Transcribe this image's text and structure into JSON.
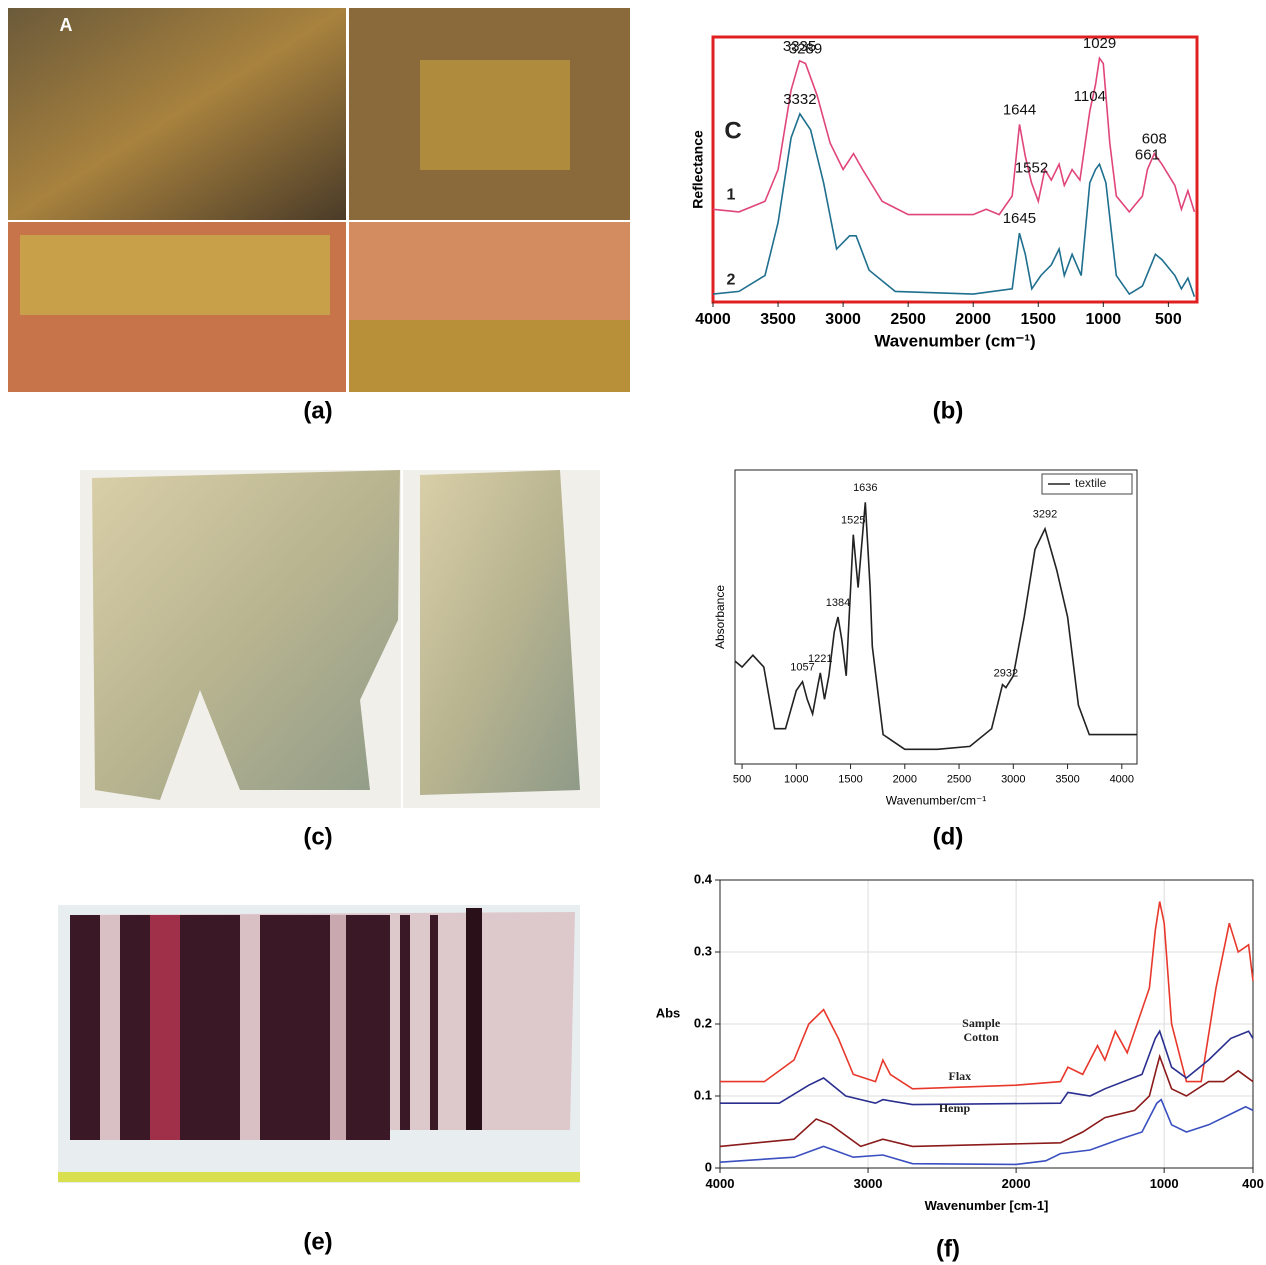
{
  "figure": {
    "panel_labels": [
      "(a)",
      "(b)",
      "(c)",
      "(d)",
      "(e)",
      "(f)"
    ],
    "inset_label": "A"
  },
  "chart_data": [
    {
      "type": "line",
      "y_label": "Reflectance",
      "x_label": "Wavenumber (cm⁻¹)",
      "inset_label": "C",
      "xlim": [
        4000,
        280
      ],
      "ylim": [
        0,
        1
      ],
      "xticks": [
        4000,
        3500,
        3000,
        2500,
        2000,
        1500,
        1000,
        500
      ],
      "frame_color": "#e02020",
      "series": [
        {
          "name": "1",
          "color": "#e0457b",
          "x": [
            4000,
            3800,
            3600,
            3500,
            3400,
            3335,
            3289,
            3200,
            3100,
            3000,
            2920,
            2850,
            2700,
            2500,
            2000,
            1900,
            1800,
            1700,
            1644,
            1600,
            1552,
            1500,
            1450,
            1400,
            1340,
            1300,
            1240,
            1180,
            1104,
            1060,
            1029,
            1000,
            950,
            900,
            800,
            700,
            661,
            608,
            550,
            450,
            400,
            350,
            300
          ],
          "values": [
            0.35,
            0.34,
            0.38,
            0.5,
            0.8,
            0.91,
            0.9,
            0.78,
            0.6,
            0.5,
            0.56,
            0.5,
            0.38,
            0.33,
            0.33,
            0.35,
            0.33,
            0.4,
            0.67,
            0.55,
            0.45,
            0.38,
            0.5,
            0.46,
            0.52,
            0.44,
            0.5,
            0.46,
            0.72,
            0.82,
            0.92,
            0.9,
            0.6,
            0.4,
            0.34,
            0.4,
            0.5,
            0.56,
            0.52,
            0.44,
            0.35,
            0.42,
            0.34
          ]
        },
        {
          "name": "2",
          "color": "#1f6f8f",
          "x": [
            4000,
            3800,
            3600,
            3500,
            3400,
            3332,
            3250,
            3150,
            3050,
            2950,
            2900,
            2800,
            2600,
            2000,
            1700,
            1645,
            1600,
            1550,
            1480,
            1400,
            1340,
            1300,
            1240,
            1170,
            1104,
            1060,
            1029,
            980,
            900,
            800,
            700,
            600,
            550,
            450,
            400,
            350,
            300
          ],
          "values": [
            0.03,
            0.04,
            0.1,
            0.3,
            0.62,
            0.71,
            0.65,
            0.45,
            0.2,
            0.25,
            0.25,
            0.12,
            0.04,
            0.03,
            0.05,
            0.26,
            0.18,
            0.05,
            0.1,
            0.14,
            0.2,
            0.1,
            0.18,
            0.1,
            0.45,
            0.5,
            0.52,
            0.45,
            0.1,
            0.03,
            0.06,
            0.18,
            0.16,
            0.1,
            0.05,
            0.09,
            0.02
          ]
        }
      ],
      "annotations": [
        {
          "label": "3335",
          "x": 3335,
          "y": 0.91
        },
        {
          "label": "3289",
          "x": 3289,
          "y": 0.9
        },
        {
          "label": "3332",
          "x": 3332,
          "y": 0.71
        },
        {
          "label": "1644",
          "x": 1644,
          "y": 0.67
        },
        {
          "label": "1552",
          "x": 1552,
          "y": 0.45
        },
        {
          "label": "1104",
          "x": 1104,
          "y": 0.72
        },
        {
          "label": "1029",
          "x": 1029,
          "y": 0.92
        },
        {
          "label": "608",
          "x": 608,
          "y": 0.56
        },
        {
          "label": "661",
          "x": 661,
          "y": 0.5
        },
        {
          "label": "1645",
          "x": 1645,
          "y": 0.26
        }
      ]
    },
    {
      "type": "line",
      "y_label": "Absorbance",
      "x_label": "Wavenumber/cm⁻¹",
      "xlim": [
        435,
        4140
      ],
      "ylim": [
        0,
        1
      ],
      "xticks": [
        500,
        1000,
        1500,
        2000,
        2500,
        3000,
        3500,
        4000
      ],
      "legend": "upper right",
      "series": [
        {
          "name": "textile",
          "color": "#222222",
          "x": [
            435,
            500,
            600,
            700,
            800,
            900,
            1000,
            1057,
            1100,
            1150,
            1200,
            1221,
            1260,
            1300,
            1350,
            1384,
            1420,
            1460,
            1525,
            1570,
            1636,
            1680,
            1700,
            1800,
            2000,
            2300,
            2600,
            2800,
            2900,
            2932,
            3000,
            3100,
            3200,
            3292,
            3400,
            3500,
            3600,
            3700,
            4000,
            4140
          ],
          "values": [
            0.35,
            0.33,
            0.37,
            0.33,
            0.12,
            0.12,
            0.25,
            0.28,
            0.22,
            0.17,
            0.27,
            0.31,
            0.22,
            0.3,
            0.45,
            0.5,
            0.42,
            0.3,
            0.78,
            0.6,
            0.89,
            0.6,
            0.4,
            0.1,
            0.05,
            0.05,
            0.06,
            0.12,
            0.27,
            0.26,
            0.3,
            0.5,
            0.73,
            0.8,
            0.66,
            0.5,
            0.2,
            0.1,
            0.1,
            0.1
          ]
        }
      ],
      "annotations": [
        {
          "label": "1057",
          "x": 1057,
          "y": 0.28
        },
        {
          "label": "1221",
          "x": 1221,
          "y": 0.31
        },
        {
          "label": "1384",
          "x": 1384,
          "y": 0.5
        },
        {
          "label": "1525",
          "x": 1525,
          "y": 0.78
        },
        {
          "label": "1636",
          "x": 1636,
          "y": 0.89
        },
        {
          "label": "2932",
          "x": 2932,
          "y": 0.26
        },
        {
          "label": "3292",
          "x": 3292,
          "y": 0.8
        }
      ]
    },
    {
      "type": "line",
      "y_label": "Abs",
      "x_label": "Wavenumber [cm-1]",
      "xlim": [
        4000,
        400
      ],
      "ylim": [
        0,
        0.4
      ],
      "xticks": [
        4000,
        3000,
        2000,
        1000,
        400
      ],
      "yticks": [
        0,
        0.1,
        0.2,
        0.3,
        0.4
      ],
      "grid": true,
      "series": [
        {
          "name": "Cotton",
          "color": "#e8382b",
          "x": [
            4000,
            3700,
            3500,
            3400,
            3300,
            3200,
            3100,
            2950,
            2900,
            2850,
            2700,
            2000,
            1700,
            1650,
            1550,
            1450,
            1400,
            1330,
            1250,
            1150,
            1100,
            1060,
            1030,
            1000,
            950,
            850,
            750,
            650,
            560,
            500,
            430,
            400
          ],
          "values": [
            0.12,
            0.12,
            0.15,
            0.2,
            0.22,
            0.18,
            0.13,
            0.12,
            0.15,
            0.13,
            0.11,
            0.115,
            0.12,
            0.14,
            0.13,
            0.17,
            0.15,
            0.19,
            0.16,
            0.22,
            0.25,
            0.33,
            0.37,
            0.34,
            0.2,
            0.12,
            0.12,
            0.25,
            0.34,
            0.3,
            0.31,
            0.26
          ]
        },
        {
          "name": "Sample",
          "color": "#2b2f8f",
          "x": [
            4000,
            3600,
            3400,
            3300,
            3150,
            2950,
            2900,
            2700,
            1700,
            1650,
            1500,
            1400,
            1150,
            1060,
            1030,
            950,
            850,
            700,
            550,
            430,
            400
          ],
          "values": [
            0.09,
            0.09,
            0.115,
            0.125,
            0.1,
            0.09,
            0.095,
            0.088,
            0.09,
            0.105,
            0.1,
            0.11,
            0.13,
            0.18,
            0.19,
            0.14,
            0.125,
            0.15,
            0.18,
            0.19,
            0.18
          ]
        },
        {
          "name": "Flax",
          "color": "#8b1a1a",
          "x": [
            4000,
            3500,
            3350,
            3250,
            3050,
            2900,
            2700,
            1700,
            1550,
            1400,
            1200,
            1100,
            1050,
            1030,
            950,
            850,
            700,
            600,
            500,
            400
          ],
          "values": [
            0.03,
            0.04,
            0.068,
            0.06,
            0.03,
            0.04,
            0.03,
            0.035,
            0.05,
            0.07,
            0.08,
            0.1,
            0.14,
            0.155,
            0.11,
            0.1,
            0.12,
            0.12,
            0.135,
            0.12
          ]
        },
        {
          "name": "Hemp",
          "color": "#3a4fc0",
          "x": [
            4000,
            3500,
            3300,
            3100,
            2900,
            2700,
            2000,
            1800,
            1700,
            1500,
            1300,
            1150,
            1050,
            1020,
            950,
            850,
            700,
            550,
            450,
            400
          ],
          "values": [
            0.008,
            0.015,
            0.03,
            0.015,
            0.018,
            0.006,
            0.005,
            0.01,
            0.02,
            0.025,
            0.04,
            0.05,
            0.09,
            0.095,
            0.06,
            0.05,
            0.06,
            0.075,
            0.085,
            0.08
          ]
        }
      ]
    }
  ]
}
